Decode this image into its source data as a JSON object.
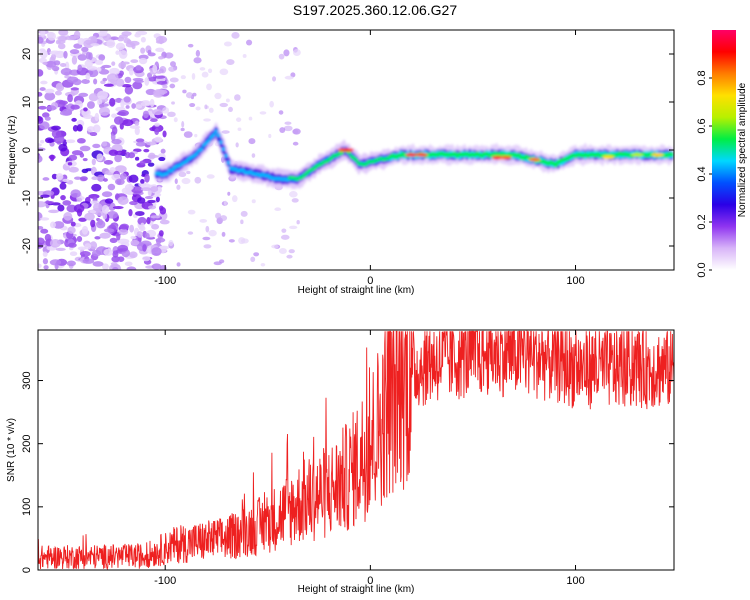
{
  "title": "S197.2025.360.12.06.G27",
  "chart_data": [
    {
      "type": "heatmap",
      "name": "spectrogram",
      "xlabel": "Height of straight line (km)",
      "ylabel": "Frequency (Hz)",
      "xlim": [
        -162,
        148
      ],
      "ylim": [
        -25,
        25
      ],
      "xticks": [
        -100,
        0,
        100
      ],
      "yticks": [
        -20,
        -10,
        0,
        10,
        20
      ],
      "colorbar": {
        "label": "Normalized spectral amplitude",
        "range": [
          0,
          1
        ],
        "ticks": [
          0.0,
          0.2,
          0.4,
          0.6,
          0.8
        ],
        "colors": [
          "#ffffff",
          "#d8b4f8",
          "#8f34f0",
          "#2a00e6",
          "#0050ff",
          "#00d8ff",
          "#00ee44",
          "#b8f000",
          "#ffe000",
          "#ff7c00",
          "#ff0000",
          "#ff0066"
        ]
      },
      "ridge": [
        {
          "x": -100,
          "y": -5
        },
        {
          "x": -85,
          "y": -1
        },
        {
          "x": -75,
          "y": 4
        },
        {
          "x": -68,
          "y": -4
        },
        {
          "x": -55,
          "y": -5
        },
        {
          "x": -45,
          "y": -6
        },
        {
          "x": -35,
          "y": -6
        },
        {
          "x": -25,
          "y": -3
        },
        {
          "x": -12,
          "y": 0
        },
        {
          "x": -5,
          "y": -3
        },
        {
          "x": 5,
          "y": -2
        },
        {
          "x": 15,
          "y": -1
        },
        {
          "x": 50,
          "y": -1
        },
        {
          "x": 70,
          "y": -1
        },
        {
          "x": 80,
          "y": -2
        },
        {
          "x": 90,
          "y": -3
        },
        {
          "x": 100,
          "y": -1
        },
        {
          "x": 148,
          "y": -1
        }
      ]
    },
    {
      "type": "line",
      "name": "snr",
      "xlabel": "Height of straight line (km)",
      "ylabel": "SNR (10 * v/v)",
      "xlim": [
        -162,
        148
      ],
      "ylim": [
        0,
        380
      ],
      "xticks": [
        -100,
        0,
        100
      ],
      "yticks": [
        0,
        100,
        200,
        300
      ],
      "color": "#ee2020",
      "envelope": [
        {
          "x": -162,
          "y": 20
        },
        {
          "x": -110,
          "y": 22
        },
        {
          "x": -95,
          "y": 40
        },
        {
          "x": -70,
          "y": 50
        },
        {
          "x": -50,
          "y": 75
        },
        {
          "x": -35,
          "y": 105
        },
        {
          "x": -20,
          "y": 125
        },
        {
          "x": -10,
          "y": 150
        },
        {
          "x": 0,
          "y": 200
        },
        {
          "x": 10,
          "y": 270
        },
        {
          "x": 20,
          "y": 315
        },
        {
          "x": 30,
          "y": 330
        },
        {
          "x": 60,
          "y": 345
        },
        {
          "x": 80,
          "y": 340
        },
        {
          "x": 100,
          "y": 320
        },
        {
          "x": 148,
          "y": 320
        }
      ]
    }
  ]
}
